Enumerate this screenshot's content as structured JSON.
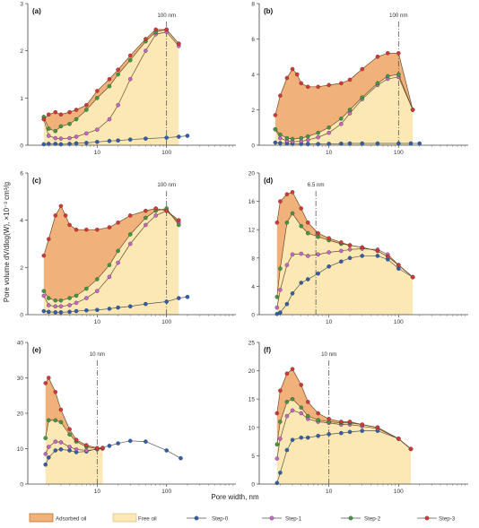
{
  "figure": {
    "ylabel": "Pore volume dV/dlog(W), ×10⁻³ cm³/g",
    "xlabel": "Pore width, nm"
  },
  "legend": [
    {
      "label": "Adsorbed oil",
      "kind": "area",
      "color": "#f0b27a",
      "edge": "#b5651d"
    },
    {
      "label": "Free oil",
      "kind": "area",
      "color": "#fbe8b4",
      "edge": "#d8c07c"
    },
    {
      "label": "Step-0",
      "kind": "line",
      "color": "#2e5fae"
    },
    {
      "label": "Step-1",
      "kind": "line",
      "color": "#c566c8"
    },
    {
      "label": "Step-2",
      "kind": "line",
      "color": "#3f9a3f"
    },
    {
      "label": "Step-3",
      "kind": "line",
      "color": "#d93636"
    }
  ],
  "chart_data": [
    {
      "panel": "(a)",
      "type": "line",
      "xscale": "log",
      "xlim": [
        1,
        1000
      ],
      "ylim": [
        0,
        3
      ],
      "yticks": [
        0,
        1,
        2,
        3
      ],
      "xticks": [
        10,
        100
      ],
      "annotation": {
        "text": "100 nm",
        "x": 100
      },
      "series": [
        {
          "name": "Step-0",
          "x": [
            1.7,
            2,
            2.5,
            3,
            4,
            5,
            7,
            10,
            15,
            20,
            30,
            50,
            100,
            150,
            200
          ],
          "y": [
            0.02,
            0.03,
            0.03,
            0.02,
            0.03,
            0.04,
            0.05,
            0.07,
            0.09,
            0.1,
            0.12,
            0.14,
            0.16,
            0.18,
            0.2
          ]
        },
        {
          "name": "Step-1",
          "x": [
            1.7,
            2,
            2.5,
            3,
            4,
            5,
            7,
            10,
            15,
            20,
            30,
            50,
            70,
            100,
            150
          ],
          "y": [
            0.55,
            0.2,
            0.15,
            0.14,
            0.15,
            0.18,
            0.25,
            0.33,
            0.55,
            0.85,
            1.4,
            2.0,
            2.35,
            2.4,
            2.1
          ]
        },
        {
          "name": "Step-2",
          "x": [
            1.7,
            2,
            2.5,
            3,
            4,
            5,
            7,
            10,
            15,
            20,
            30,
            50,
            70,
            100,
            150
          ],
          "y": [
            0.6,
            0.35,
            0.3,
            0.4,
            0.45,
            0.55,
            0.75,
            1.0,
            1.25,
            1.5,
            1.8,
            2.2,
            2.4,
            2.45,
            2.15
          ]
        },
        {
          "name": "Step-3",
          "x": [
            1.7,
            2,
            2.5,
            3,
            4,
            5,
            7,
            10,
            15,
            20,
            30,
            50,
            70,
            100,
            150
          ],
          "y": [
            0.55,
            0.65,
            0.7,
            0.65,
            0.7,
            0.75,
            0.85,
            1.15,
            1.4,
            1.6,
            1.9,
            2.25,
            2.45,
            2.45,
            2.15
          ]
        }
      ]
    },
    {
      "panel": "(b)",
      "type": "line",
      "xscale": "log",
      "xlim": [
        1,
        1000
      ],
      "ylim": [
        0,
        8
      ],
      "yticks": [
        0,
        2,
        4,
        6,
        8
      ],
      "xticks": [
        10,
        100
      ],
      "annotation": {
        "text": "100 nm",
        "x": 100
      },
      "series": [
        {
          "name": "Step-0",
          "x": [
            1.7,
            2,
            2.5,
            3,
            4,
            5,
            7,
            10,
            15,
            20,
            30,
            50,
            100,
            150,
            200
          ],
          "y": [
            0.15,
            0.12,
            0.1,
            0.09,
            0.08,
            0.07,
            0.07,
            0.08,
            0.09,
            0.1,
            0.1,
            0.1,
            0.1,
            0.1,
            0.1
          ]
        },
        {
          "name": "Step-1",
          "x": [
            1.7,
            2,
            2.5,
            3,
            4,
            5,
            7,
            10,
            15,
            20,
            30,
            50,
            70,
            100,
            160
          ],
          "y": [
            0.9,
            0.4,
            0.25,
            0.2,
            0.22,
            0.3,
            0.45,
            0.7,
            1.2,
            1.8,
            2.6,
            3.4,
            3.75,
            3.85,
            2.0
          ]
        },
        {
          "name": "Step-2",
          "x": [
            1.7,
            2,
            2.5,
            3,
            4,
            5,
            7,
            10,
            15,
            20,
            30,
            50,
            70,
            100,
            160
          ],
          "y": [
            0.9,
            0.6,
            0.4,
            0.35,
            0.4,
            0.5,
            0.7,
            1.0,
            1.5,
            2.0,
            2.7,
            3.5,
            3.9,
            4.0,
            2.0
          ]
        },
        {
          "name": "Step-3",
          "x": [
            1.7,
            2,
            2.5,
            3,
            3.5,
            4,
            5,
            7,
            10,
            15,
            20,
            30,
            50,
            70,
            100,
            160
          ],
          "y": [
            1.7,
            2.8,
            3.8,
            4.3,
            4.0,
            3.5,
            3.3,
            3.3,
            3.4,
            3.5,
            3.7,
            4.3,
            5.0,
            5.2,
            5.2,
            2.0
          ]
        }
      ]
    },
    {
      "panel": "(c)",
      "type": "line",
      "xscale": "log",
      "xlim": [
        1,
        1000
      ],
      "ylim": [
        0,
        6
      ],
      "yticks": [
        0,
        2,
        4,
        6
      ],
      "xticks": [
        10,
        100
      ],
      "annotation": {
        "text": "100 nm",
        "x": 100
      },
      "series": [
        {
          "name": "Step-0",
          "x": [
            1.7,
            2,
            2.5,
            3,
            4,
            5,
            7,
            10,
            15,
            20,
            30,
            50,
            100,
            150,
            200
          ],
          "y": [
            0.15,
            0.12,
            0.1,
            0.1,
            0.12,
            0.15,
            0.18,
            0.2,
            0.25,
            0.3,
            0.35,
            0.45,
            0.55,
            0.7,
            0.75
          ]
        },
        {
          "name": "Step-1",
          "x": [
            1.7,
            2,
            2.5,
            3,
            4,
            5,
            7,
            10,
            15,
            20,
            30,
            50,
            70,
            100,
            150
          ],
          "y": [
            0.8,
            0.4,
            0.35,
            0.35,
            0.4,
            0.5,
            0.7,
            1.0,
            1.6,
            2.2,
            3.0,
            3.8,
            4.2,
            4.4,
            3.9
          ]
        },
        {
          "name": "Step-2",
          "x": [
            1.7,
            2,
            2.5,
            3,
            4,
            5,
            7,
            10,
            15,
            20,
            30,
            50,
            70,
            100,
            150
          ],
          "y": [
            1.0,
            0.7,
            0.6,
            0.6,
            0.7,
            0.8,
            1.1,
            1.5,
            2.1,
            2.7,
            3.4,
            4.1,
            4.4,
            4.5,
            3.8
          ]
        },
        {
          "name": "Step-3",
          "x": [
            1.7,
            2,
            2.5,
            3,
            3.5,
            4,
            5,
            7,
            10,
            15,
            20,
            30,
            50,
            70,
            100,
            150
          ],
          "y": [
            2.5,
            3.2,
            4.2,
            4.6,
            4.2,
            3.8,
            3.6,
            3.6,
            3.6,
            3.7,
            3.9,
            4.2,
            4.4,
            4.5,
            4.4,
            4.0
          ]
        }
      ]
    },
    {
      "panel": "(d)",
      "type": "line",
      "xscale": "log",
      "xlim": [
        1,
        1000
      ],
      "ylim": [
        0,
        20
      ],
      "yticks": [
        0,
        4,
        8,
        12,
        16,
        20
      ],
      "xticks": [
        10,
        100
      ],
      "annotation": {
        "text": "6.5 nm",
        "x": 6.5
      },
      "series": [
        {
          "name": "Step-0",
          "x": [
            1.8,
            2,
            2.5,
            3,
            4,
            5,
            7,
            10,
            15,
            20,
            30,
            50,
            70,
            100,
            160
          ],
          "y": [
            0.1,
            0.3,
            1.5,
            3.0,
            4.5,
            5.0,
            5.8,
            6.8,
            7.5,
            8.0,
            8.3,
            8.3,
            7.8,
            6.5,
            5.3
          ]
        },
        {
          "name": "Step-1",
          "x": [
            1.8,
            2,
            2.5,
            3,
            4,
            5,
            7,
            10,
            15,
            20,
            30,
            50,
            70,
            100,
            160
          ],
          "y": [
            1.0,
            3.5,
            7.0,
            8.5,
            8.6,
            8.3,
            8.5,
            8.8,
            9.0,
            9.2,
            9.3,
            9.2,
            8.5,
            7.0,
            5.3
          ]
        },
        {
          "name": "Step-2",
          "x": [
            1.8,
            2,
            2.5,
            3,
            4,
            5,
            7,
            10,
            15,
            20,
            30,
            50,
            70,
            100,
            160
          ],
          "y": [
            2.5,
            6.5,
            13.0,
            14.3,
            12.5,
            11.5,
            11.0,
            10.5,
            10.0,
            9.8,
            9.5,
            9.0,
            8.2,
            7.0,
            5.3
          ]
        },
        {
          "name": "Step-3",
          "x": [
            1.8,
            2,
            2.5,
            3,
            4,
            5,
            7,
            10,
            15,
            20,
            30,
            50,
            70,
            100,
            160
          ],
          "y": [
            13.0,
            16.0,
            17.0,
            17.3,
            15.0,
            13.0,
            11.5,
            10.8,
            10.2,
            9.8,
            9.5,
            9.0,
            8.2,
            7.0,
            5.3
          ]
        }
      ]
    },
    {
      "panel": "(e)",
      "type": "line",
      "xscale": "log",
      "xlim": [
        1,
        1000
      ],
      "ylim": [
        0,
        40
      ],
      "yticks": [
        0,
        10,
        20,
        30,
        40
      ],
      "xticks": [
        10,
        100
      ],
      "annotation": {
        "text": "10 nm",
        "x": 10
      },
      "series": [
        {
          "name": "Step-0",
          "x": [
            1.8,
            2,
            2.5,
            3,
            4,
            5,
            7,
            10,
            15,
            20,
            30,
            50,
            100,
            160
          ],
          "y": [
            5.5,
            7.5,
            9.5,
            9.8,
            9.5,
            9.0,
            9.2,
            10.0,
            10.8,
            11.5,
            12.2,
            12.0,
            9.5,
            7.3
          ]
        },
        {
          "name": "Step-1",
          "x": [
            1.8,
            2,
            2.5,
            3,
            4,
            5,
            7,
            10,
            12
          ],
          "y": [
            8.5,
            10.5,
            12.0,
            11.8,
            10.5,
            9.8,
            9.5,
            9.8,
            10.0
          ]
        },
        {
          "name": "Step-2",
          "x": [
            1.8,
            2,
            2.5,
            3,
            4,
            5,
            7,
            10,
            12
          ],
          "y": [
            13.0,
            18.0,
            18.0,
            17.5,
            14.0,
            12.0,
            10.5,
            10.0,
            10.2
          ]
        },
        {
          "name": "Step-3",
          "x": [
            1.8,
            2,
            2.5,
            3,
            4,
            5,
            7,
            10,
            12
          ],
          "y": [
            28.5,
            30.0,
            26.0,
            21.0,
            15.5,
            12.5,
            11.0,
            10.2,
            10.2
          ]
        }
      ]
    },
    {
      "panel": "(f)",
      "type": "line",
      "xscale": "log",
      "xlim": [
        1,
        1000
      ],
      "ylim": [
        0,
        25
      ],
      "yticks": [
        0,
        5,
        10,
        15,
        20,
        25
      ],
      "xticks": [
        10,
        100
      ],
      "annotation": {
        "text": "10 nm",
        "x": 10
      },
      "series": [
        {
          "name": "Step-0",
          "x": [
            1.8,
            2,
            2.5,
            3,
            4,
            5,
            7,
            10,
            15,
            20,
            30,
            50,
            100,
            150
          ],
          "y": [
            0.2,
            2.0,
            6.0,
            7.8,
            8.2,
            8.2,
            8.5,
            8.8,
            9.0,
            9.2,
            9.4,
            9.4,
            8.0,
            6.2
          ]
        },
        {
          "name": "Step-1",
          "x": [
            1.8,
            2,
            2.5,
            3,
            4,
            5,
            7,
            10,
            15,
            20,
            30,
            50,
            100,
            150
          ],
          "y": [
            4.5,
            8.0,
            12.0,
            13.0,
            12.5,
            11.5,
            11.0,
            10.8,
            10.5,
            10.5,
            10.2,
            9.8,
            8.0,
            6.2
          ]
        },
        {
          "name": "Step-2",
          "x": [
            1.8,
            2,
            2.5,
            3,
            4,
            5,
            7,
            10,
            15,
            20,
            30,
            50,
            100,
            150
          ],
          "y": [
            7.0,
            11.0,
            14.5,
            15.0,
            13.5,
            12.0,
            11.3,
            11.0,
            10.8,
            10.8,
            10.5,
            10.0,
            8.0,
            6.2
          ]
        },
        {
          "name": "Step-3",
          "x": [
            1.8,
            2,
            2.5,
            3,
            4,
            5,
            7,
            10,
            15,
            20,
            30,
            50,
            100,
            150
          ],
          "y": [
            12.5,
            16.5,
            19.5,
            20.3,
            17.5,
            14.5,
            12.5,
            11.5,
            11.0,
            11.0,
            10.5,
            10.0,
            8.0,
            6.2
          ]
        }
      ]
    }
  ]
}
